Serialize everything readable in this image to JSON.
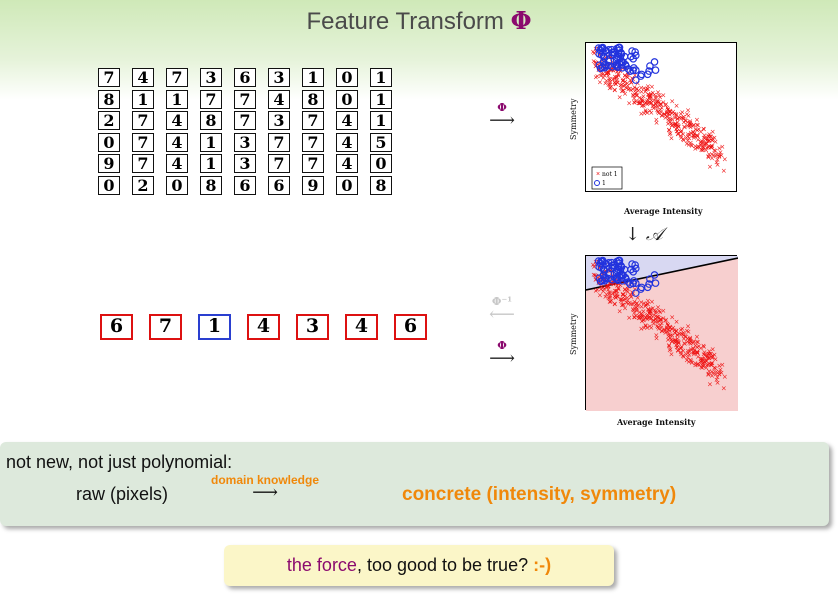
{
  "header": {
    "title_text": "Feature Transform ",
    "title_symbol": "Φ"
  },
  "digit_grid": [
    [
      "7",
      "4",
      "7",
      "3",
      "6",
      "3",
      "1",
      "0",
      "1"
    ],
    [
      "8",
      "1",
      "1",
      "7",
      "7",
      "4",
      "8",
      "0",
      "1"
    ],
    [
      "2",
      "7",
      "4",
      "8",
      "7",
      "3",
      "7",
      "4",
      "1"
    ],
    [
      "0",
      "7",
      "4",
      "1",
      "3",
      "7",
      "7",
      "4",
      "5"
    ],
    [
      "9",
      "7",
      "4",
      "1",
      "3",
      "7",
      "7",
      "4",
      "0"
    ],
    [
      "0",
      "2",
      "0",
      "8",
      "6",
      "6",
      "9",
      "0",
      "8"
    ]
  ],
  "arrows": {
    "phi_top": {
      "label": "Φ",
      "symbol": "⟶"
    },
    "phi_inverse": {
      "label": "Φ⁻¹",
      "symbol": "⟵"
    },
    "phi_bottom": {
      "label": "Φ",
      "symbol": "⟶"
    },
    "down_algorithm": {
      "arrow": "↓",
      "label": "𝒜"
    }
  },
  "plot_top": {
    "xlabel": "Average Intensity",
    "ylabel": "Symmetry",
    "legend": [
      "not 1",
      "1"
    ]
  },
  "plot_bottom": {
    "xlabel": "Average Intensity",
    "ylabel": "Symmetry"
  },
  "samples": [
    {
      "digit": "6",
      "class": "red"
    },
    {
      "digit": "7",
      "class": "red"
    },
    {
      "digit": "1",
      "class": "blue"
    },
    {
      "digit": "4",
      "class": "red"
    },
    {
      "digit": "3",
      "class": "red"
    },
    {
      "digit": "4",
      "class": "red"
    },
    {
      "digit": "6",
      "class": "red"
    }
  ],
  "box1": {
    "line1": "not new, not just polynomial:",
    "raw": "raw (pixels)",
    "arrow_label": "domain knowledge",
    "arrow": "⟶",
    "concrete": "concrete (intensity, symmetry)"
  },
  "box2": {
    "force": "the force",
    "rest": ", too good to be true? ",
    "smile": ":-)"
  },
  "colors": {
    "phi": "#8b0a6e",
    "orange": "#f0880a",
    "red_marker": "#ee1111",
    "blue_marker": "#2233dd",
    "header_green": "#cfe9b8"
  }
}
